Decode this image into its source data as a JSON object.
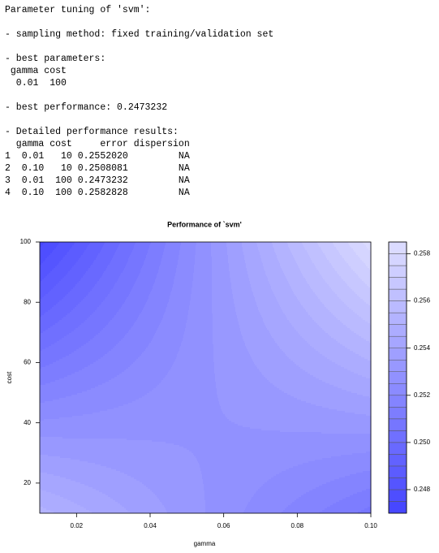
{
  "console": {
    "lines": [
      "Parameter tuning of 'svm':",
      "- sampling method: fixed training/validation set",
      "- best parameters:",
      " gamma cost",
      "  0.01  100",
      "- best performance: 0.2473232",
      "- Detailed performance results:",
      "  gamma cost     error dispersion",
      "1  0.01   10 0.2552020         NA",
      "2  0.10   10 0.2508081         NA",
      "3  0.01  100 0.2473232         NA",
      "4  0.10  100 0.2582828         NA"
    ]
  },
  "chart_data": {
    "type": "filled-contour",
    "title": "Performance of `svm'",
    "xlabel": "gamma",
    "ylabel": "cost",
    "x": [
      0.01,
      0.1
    ],
    "y": [
      10,
      100
    ],
    "z": [
      [
        0.255202,
        0.2508081
      ],
      [
        0.2473232,
        0.2582828
      ]
    ],
    "xlim": [
      0.01,
      0.1
    ],
    "ylim": [
      10,
      100
    ],
    "xticks": [
      0.02,
      0.04,
      0.06,
      0.08,
      {
        "value": 0.1,
        "label": "0.10"
      }
    ],
    "yticks": [
      20,
      40,
      60,
      80,
      100
    ],
    "levels": [
      0.247,
      0.2475,
      0.248,
      0.2485,
      0.249,
      0.2495,
      0.25,
      0.2505,
      0.251,
      0.2515,
      0.252,
      0.2525,
      0.253,
      0.2535,
      0.254,
      0.2545,
      0.255,
      0.2555,
      0.256,
      0.2565,
      0.257,
      0.2575,
      0.258,
      0.2585
    ],
    "zticks": [
      0.248,
      {
        "value": 0.25,
        "label": "0.250"
      },
      0.252,
      0.254,
      0.256,
      0.258
    ],
    "hue": 0.6667,
    "saturation_range": [
      0.72,
      0.14
    ]
  }
}
